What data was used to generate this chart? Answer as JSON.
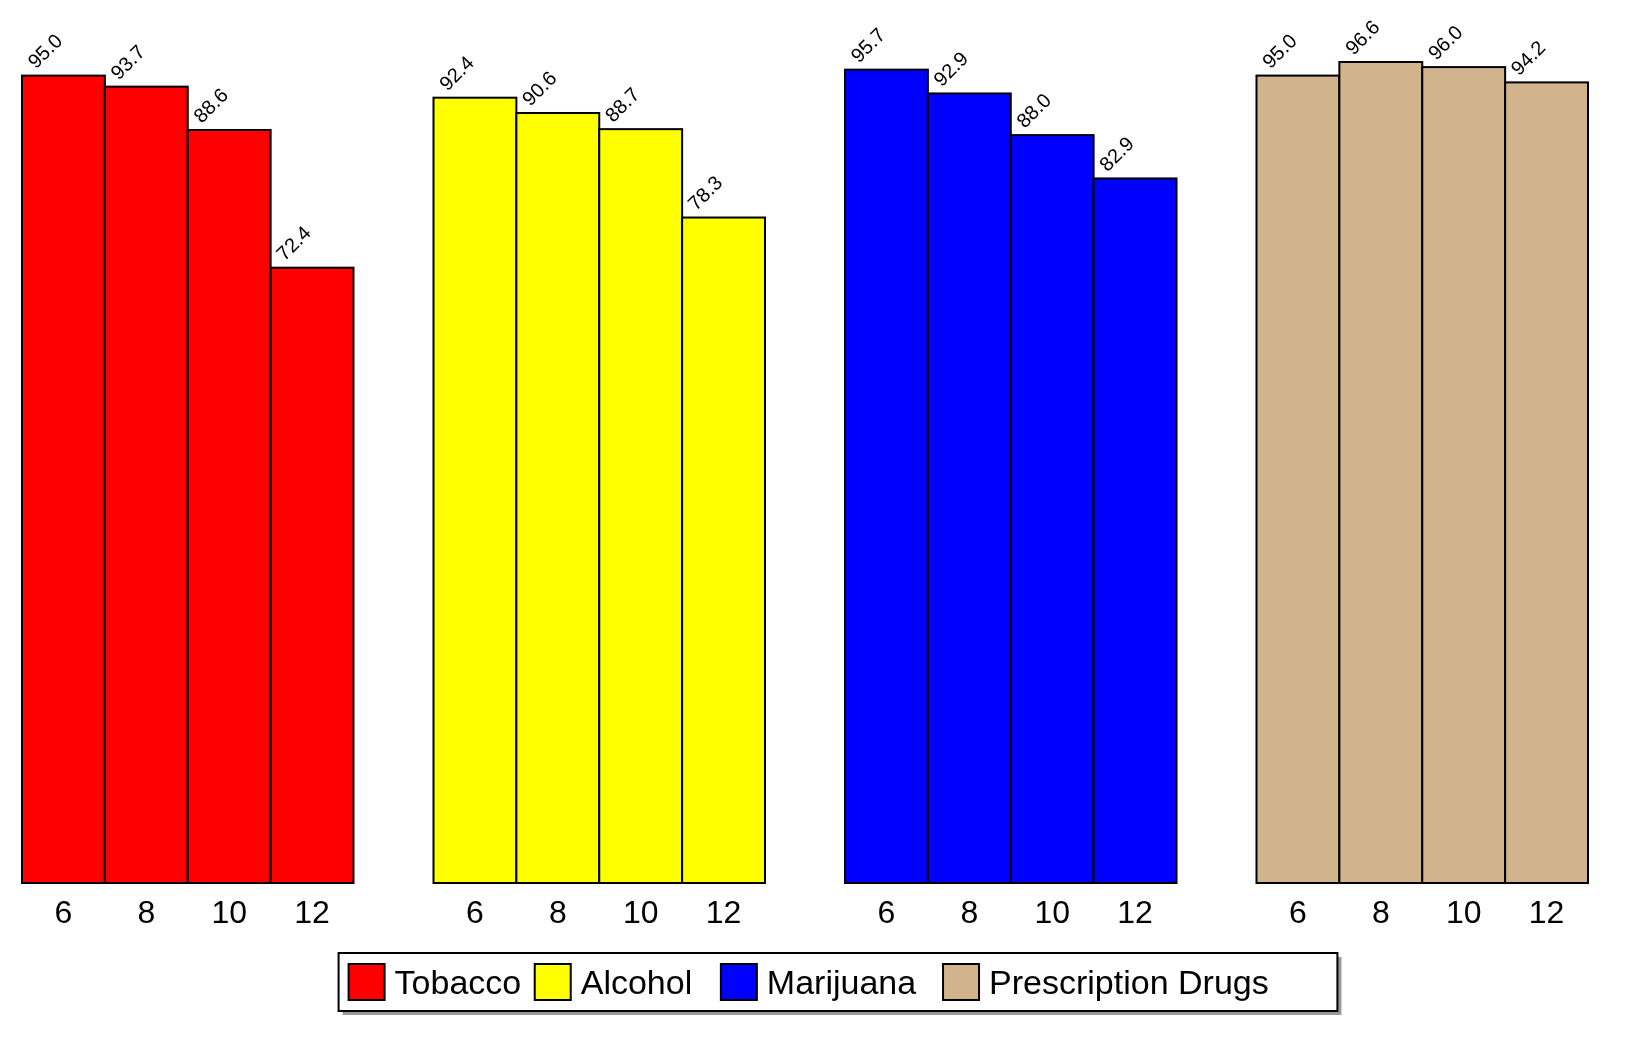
{
  "chart_data": [
    {
      "type": "bar",
      "categories": [
        "6",
        "8",
        "10",
        "12"
      ],
      "series": [
        {
          "name": "Tobacco",
          "color": "#ff0000",
          "values": [
            95.0,
            93.7,
            88.6,
            72.4
          ],
          "value_labels": [
            "95.0",
            "93.7",
            "88.6",
            "72.4"
          ]
        }
      ],
      "legend": "bottom"
    },
    {
      "type": "bar",
      "categories": [
        "6",
        "8",
        "10",
        "12"
      ],
      "series": [
        {
          "name": "Alcohol",
          "color": "#ffff00",
          "values": [
            92.4,
            90.6,
            88.7,
            78.3
          ],
          "value_labels": [
            "92.4",
            "90.6",
            "88.7",
            "78.3"
          ]
        }
      ],
      "legend": "bottom"
    },
    {
      "type": "bar",
      "categories": [
        "6",
        "8",
        "10",
        "12"
      ],
      "series": [
        {
          "name": "Marijuana",
          "color": "#0000ff",
          "values": [
            95.7,
            92.9,
            88.0,
            82.9
          ],
          "value_labels": [
            "95.7",
            "92.9",
            "88.0",
            "82.9"
          ]
        }
      ],
      "legend": "bottom"
    },
    {
      "type": "bar",
      "categories": [
        "6",
        "8",
        "10",
        "12"
      ],
      "series": [
        {
          "name": "Prescription Drugs",
          "color": "#d2b48c",
          "values": [
            95.0,
            96.6,
            96.0,
            94.2
          ],
          "value_labels": [
            "95.0",
            "96.6",
            "96.0",
            "94.2"
          ]
        }
      ],
      "legend": "bottom"
    }
  ]
}
